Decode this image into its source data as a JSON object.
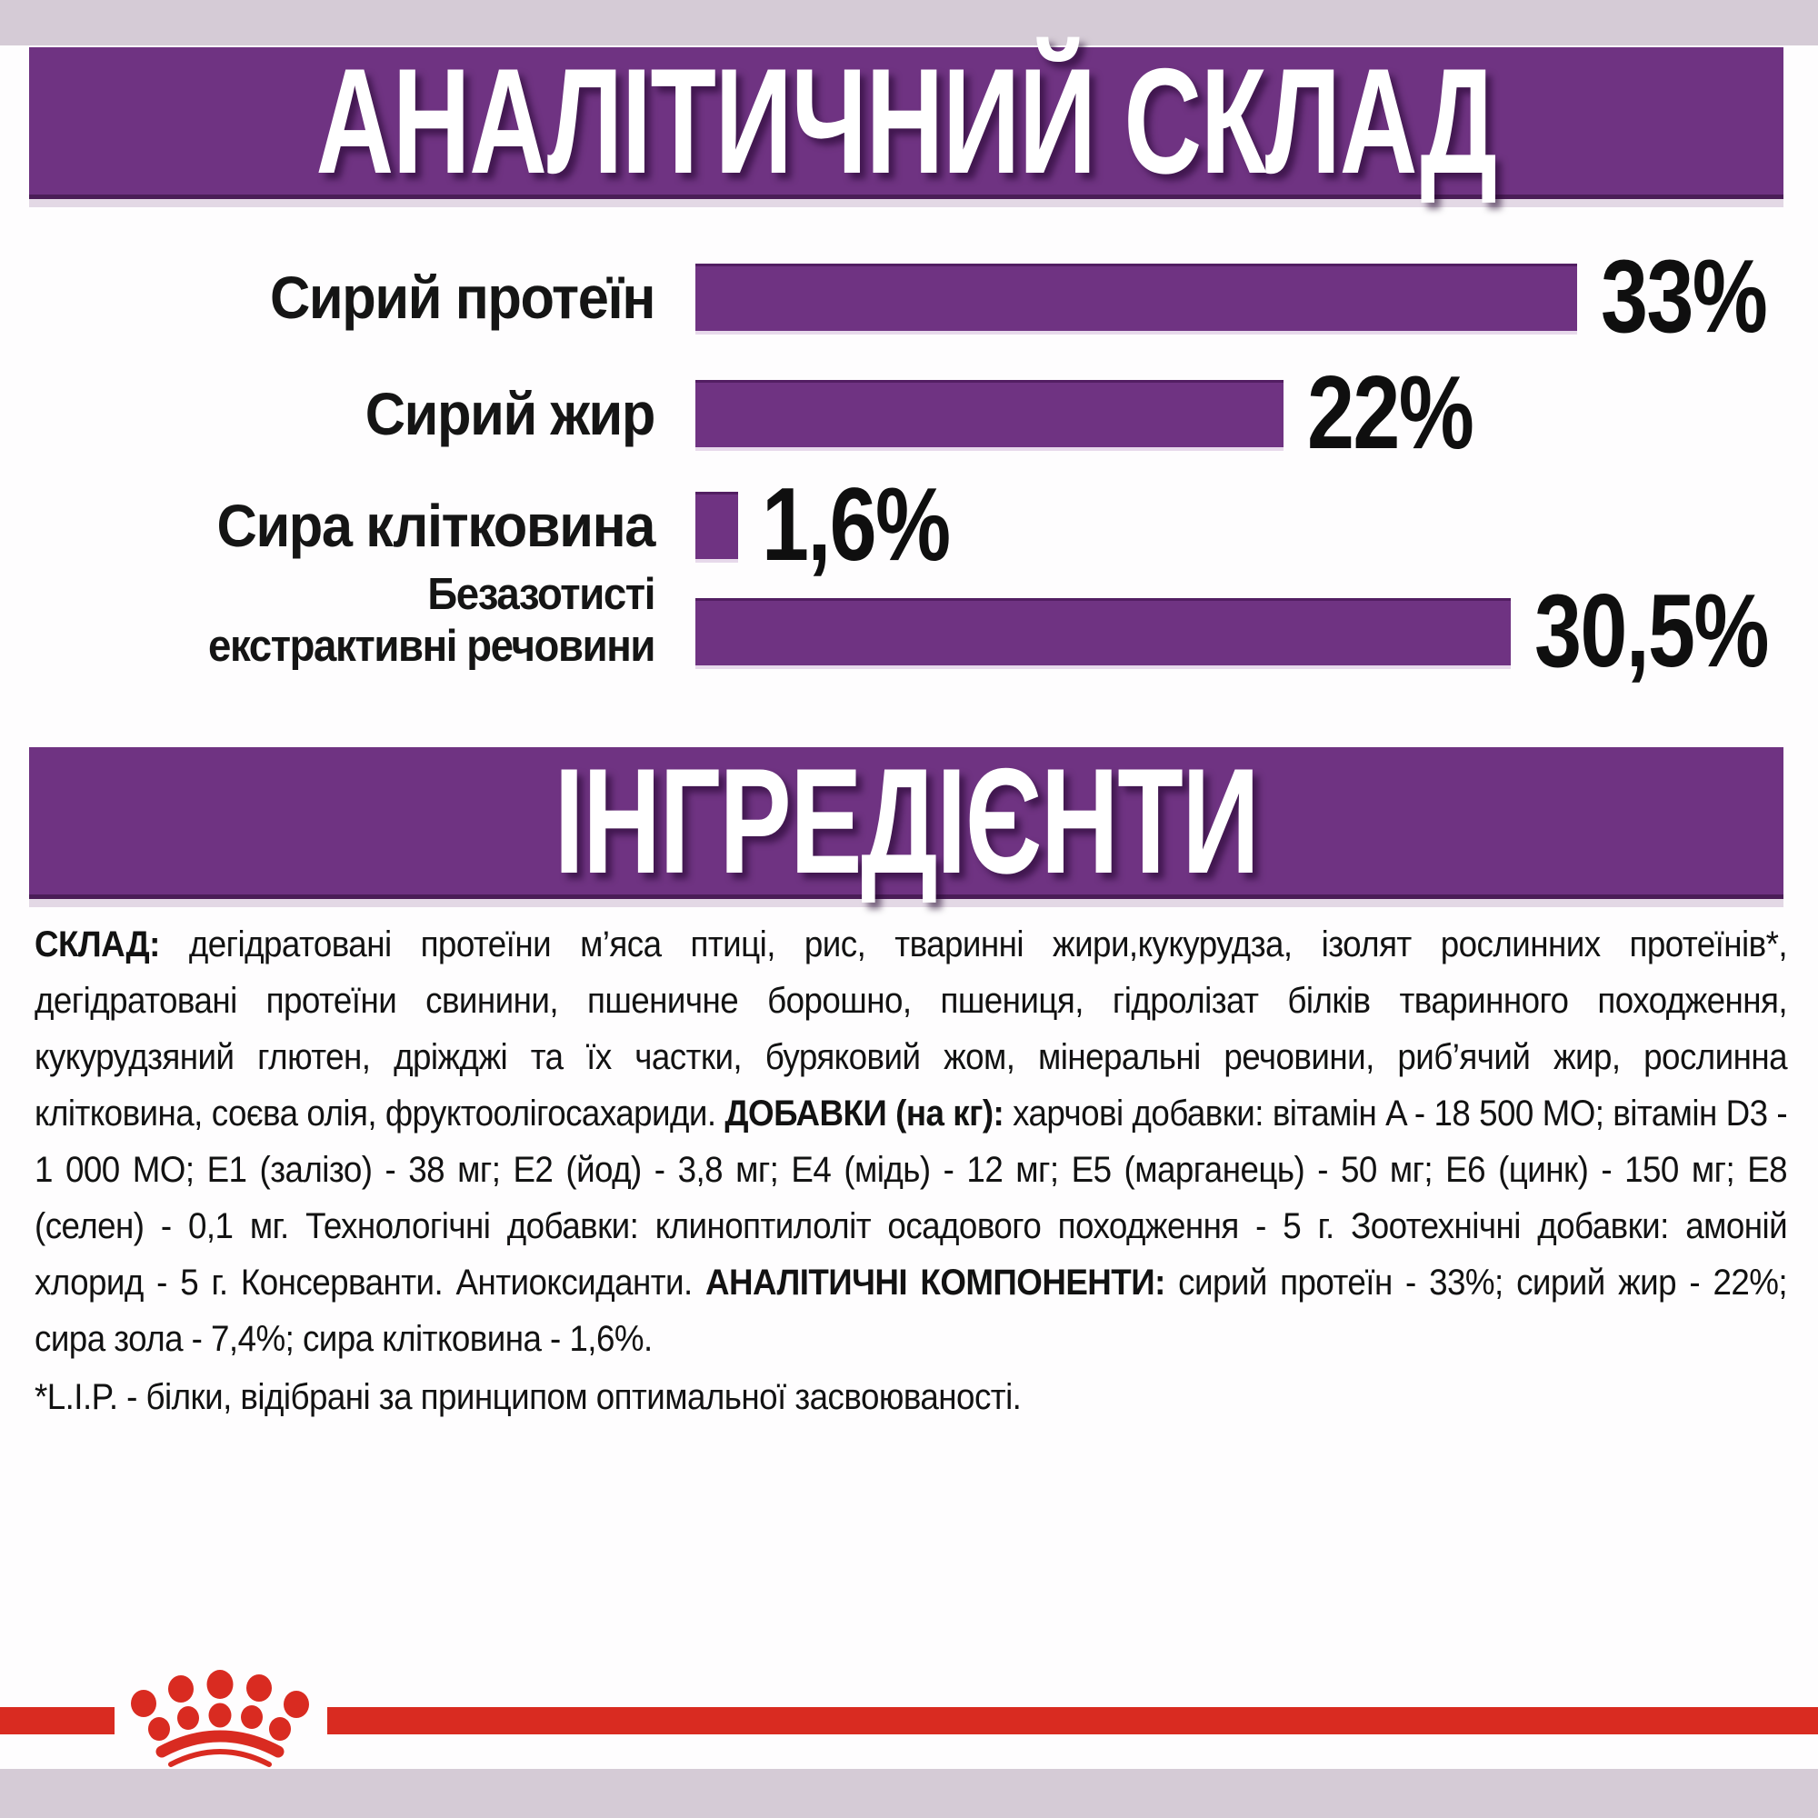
{
  "colors": {
    "purple": "#6f3382",
    "red": "#d92b21",
    "lavender": "#d5cbd6",
    "text": "#121212",
    "banner_text": "#ffffff"
  },
  "section1": {
    "title": "АНАЛІТИЧНИЙ СКЛАД"
  },
  "chart_data": {
    "type": "bar",
    "orientation": "horizontal",
    "categories": [
      "Сирий протеїн",
      "Сирий жир",
      "Сира клітковина",
      "Безазотисті\nекстрактивні речовини"
    ],
    "values": [
      33,
      22,
      1.6,
      30.5
    ],
    "value_labels": [
      "33%",
      "22%",
      "1,6%",
      "30,5%"
    ],
    "xlim": [
      0,
      33
    ],
    "bar_color": "#6f3382",
    "grid": false,
    "legend": false
  },
  "section2": {
    "title": "ІНГРЕДІЄНТИ"
  },
  "ingredients": {
    "composition_label": "СКЛАД:",
    "composition_text": " дегідратовані протеїни м’яса птиці, рис, тваринні жири,кукурудза, ізолят рослинних протеїнів*, дегідратовані протеїни свинини, пшеничне борошно, пшениця, гідролізат білків тваринного походження, кукурудзяний глютен, дріжджі та їх частки, буряковий жом, мінеральні речовини, риб’ячий жир, рослинна клітковина, соєва олія, фруктоолігосахариди. ",
    "additives_label": "ДОБАВКИ (на кг):",
    "additives_text": " харчові добавки: вітамін A - 18 500 МО; вітамін D3 - 1 000 МО; E1 (залізо) - 38 мг; E2 (йод) - 3,8 мг; E4 (мідь) - 12 мг; E5 (марганець) - 50 мг; E6 (цинк) - 150 мг; E8 (селен) - 0,1 мг.  Технологічні добавки: клиноптилоліт осадового походження - 5 г. Зоотехнічні добавки: амоній хлорид - 5 г. Консерванти. Антиоксиданти.  ",
    "analytical_label": "АНАЛІТИЧНІ КОМПОНЕНТИ:",
    "analytical_text": " сирий протеїн - 33%; сирий жир - 22%; сира зола - 7,4%; сира клітковина - 1,6%.",
    "footnote": "*L.I.P. - білки, відібрані за принципом оптимальної засвоюваності."
  },
  "footer": {
    "brand_icon": "royal-canin-crown"
  }
}
